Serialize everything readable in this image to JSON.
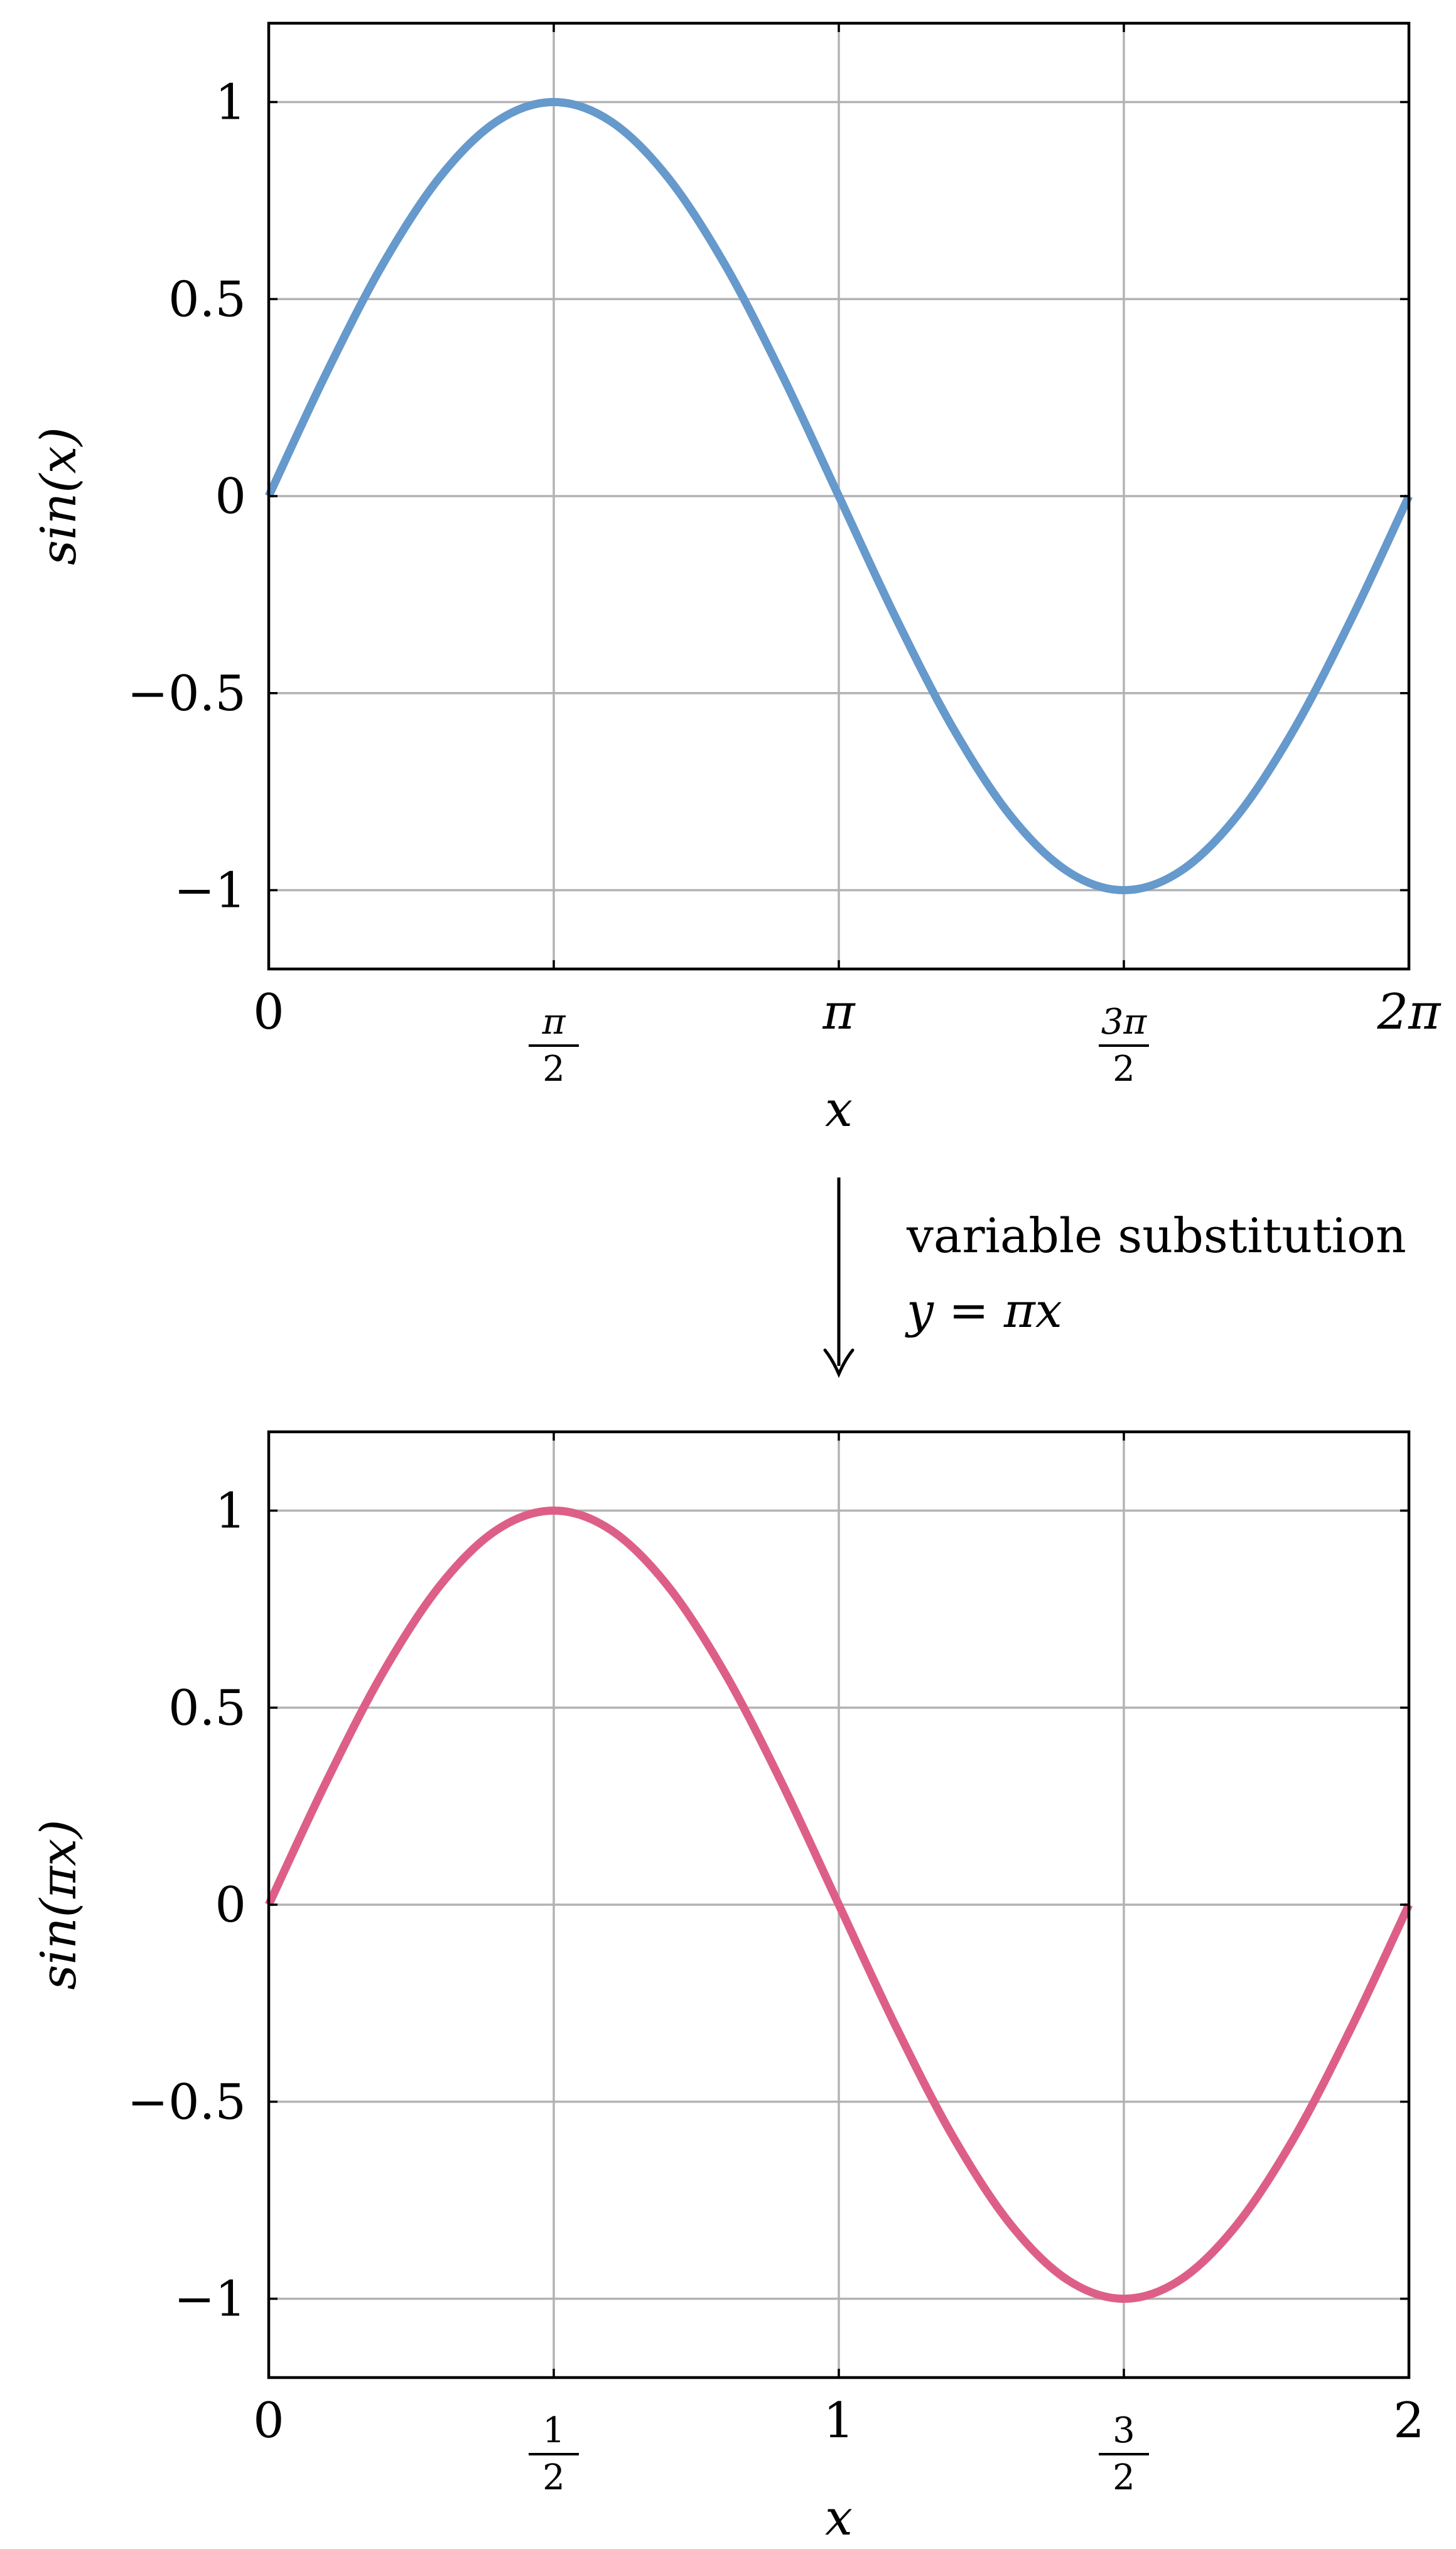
{
  "chart_data": [
    {
      "type": "line",
      "xlabel": "x",
      "ylabel": "sin(x)",
      "xlim": [
        0,
        6.283185
      ],
      "ylim": [
        -1.2,
        1.2
      ],
      "grid": true,
      "x_ticks": [
        {
          "value": 0,
          "label": "0",
          "kind": "plain"
        },
        {
          "value": 1.570796,
          "num": "π",
          "den": "2",
          "kind": "fraction"
        },
        {
          "value": 3.141593,
          "label": "π",
          "kind": "plain"
        },
        {
          "value": 4.712389,
          "num": "3π",
          "den": "2",
          "kind": "fraction"
        },
        {
          "value": 6.283185,
          "label": "2π",
          "kind": "plain"
        }
      ],
      "y_ticks": [
        {
          "value": 1,
          "label": "1"
        },
        {
          "value": 0.5,
          "label": "0.5"
        },
        {
          "value": 0,
          "label": "0"
        },
        {
          "value": -0.5,
          "label": "−0.5"
        },
        {
          "value": -1,
          "label": "−1"
        }
      ],
      "series": [
        {
          "color": "#6699cc",
          "x": [
            0,
            0.314159,
            0.628319,
            0.942478,
            1.256637,
            1.570796,
            1.884956,
            2.199115,
            2.513274,
            2.827433,
            3.141593,
            3.455752,
            3.769911,
            4.08407,
            4.39823,
            4.712389,
            5.026548,
            5.340708,
            5.654867,
            5.969026,
            6.283185
          ],
          "y": [
            0,
            0.309,
            0.588,
            0.809,
            0.951,
            1,
            0.951,
            0.809,
            0.588,
            0.309,
            0,
            -0.309,
            -0.588,
            -0.809,
            -0.951,
            -1,
            -0.951,
            -0.809,
            -0.588,
            -0.309,
            0
          ]
        }
      ]
    },
    {
      "type": "line",
      "xlabel": "x",
      "ylabel": "sin(πx)",
      "xlim": [
        0,
        2
      ],
      "ylim": [
        -1.2,
        1.2
      ],
      "grid": true,
      "x_ticks": [
        {
          "value": 0,
          "label": "0",
          "kind": "plain"
        },
        {
          "value": 0.5,
          "num": "1",
          "den": "2",
          "kind": "fraction"
        },
        {
          "value": 1,
          "label": "1",
          "kind": "plain"
        },
        {
          "value": 1.5,
          "num": "3",
          "den": "2",
          "kind": "fraction"
        },
        {
          "value": 2,
          "label": "2",
          "kind": "plain"
        }
      ],
      "y_ticks": [
        {
          "value": 1,
          "label": "1"
        },
        {
          "value": 0.5,
          "label": "0.5"
        },
        {
          "value": 0,
          "label": "0"
        },
        {
          "value": -0.5,
          "label": "−0.5"
        },
        {
          "value": -1,
          "label": "−1"
        }
      ],
      "series": [
        {
          "color": "#dd5f88",
          "x": [
            0,
            0.1,
            0.2,
            0.3,
            0.4,
            0.5,
            0.6,
            0.7,
            0.8,
            0.9,
            1.0,
            1.1,
            1.2,
            1.3,
            1.4,
            1.5,
            1.6,
            1.7,
            1.8,
            1.9,
            2.0
          ],
          "y": [
            0,
            0.309,
            0.588,
            0.809,
            0.951,
            1,
            0.951,
            0.809,
            0.588,
            0.309,
            0,
            -0.309,
            -0.588,
            -0.809,
            -0.951,
            -1,
            -0.951,
            -0.809,
            -0.588,
            -0.309,
            0
          ]
        }
      ]
    }
  ],
  "transition": {
    "arrow_icon": "down-arrow-icon",
    "caption_line1": "variable substitution",
    "caption_line2": "y = πx"
  }
}
